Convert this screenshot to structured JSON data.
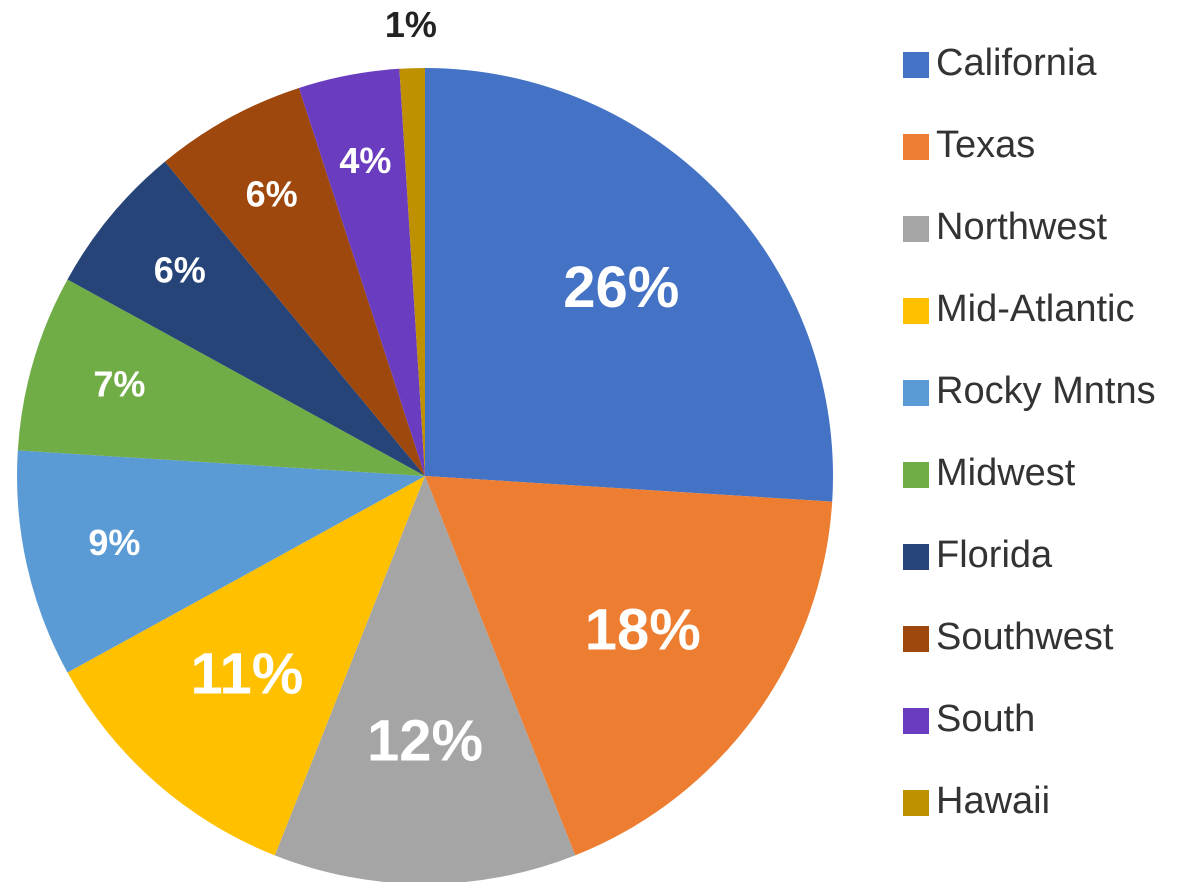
{
  "chart_data": {
    "type": "pie",
    "categories": [
      "California",
      "Texas",
      "Northwest",
      "Mid-Atlantic",
      "Rocky Mntns",
      "Midwest",
      "Florida",
      "Southwest",
      "South",
      "Hawaii"
    ],
    "values": [
      26,
      18,
      12,
      11,
      9,
      7,
      6,
      6,
      4,
      1
    ],
    "value_labels": [
      "26%",
      "18%",
      "12%",
      "11%",
      "9%",
      "7%",
      "6%",
      "6%",
      "4%",
      "1%"
    ],
    "colors": [
      "#4472c4",
      "#ed7d31",
      "#a5a5a5",
      "#ffc000",
      "#5b9bd5",
      "#70ad47",
      "#264478",
      "#9e480e",
      "#6a3dc0",
      "#bf9000"
    ],
    "legend": "right"
  }
}
